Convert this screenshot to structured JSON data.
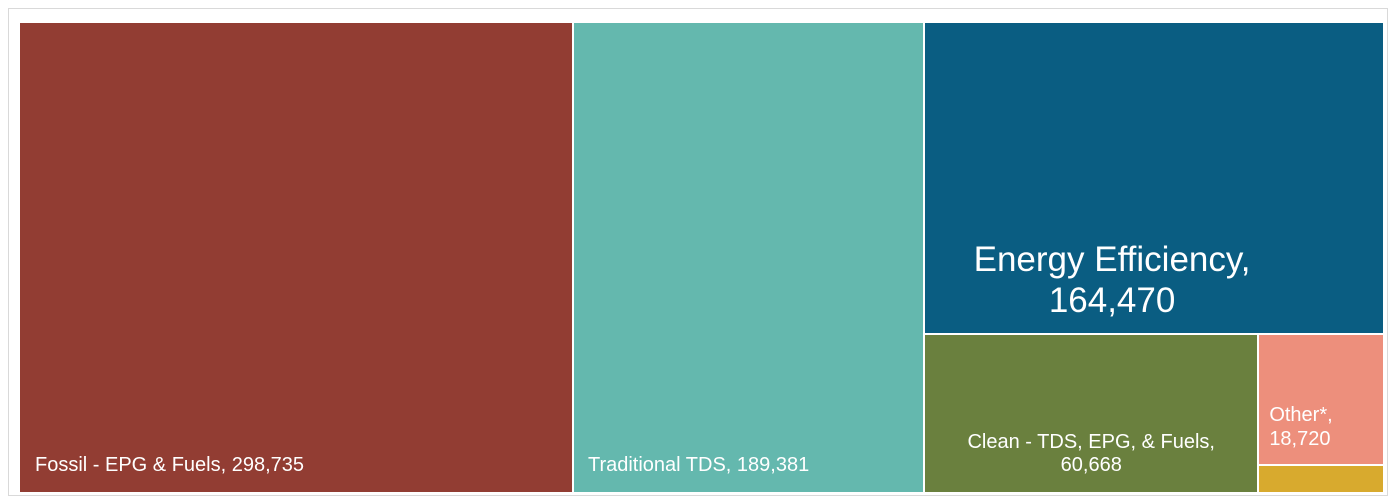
{
  "chart_data": {
    "type": "treemap",
    "title": "",
    "items": [
      {
        "label": "Fossil - EPG & Fuels, 298,735",
        "line1": "Fossil - EPG & Fuels, 298,735",
        "line2": "",
        "name": "Fossil - EPG & Fuels",
        "value": 298735,
        "color": "#923d33"
      },
      {
        "label": "Traditional TDS, 189,381",
        "line1": "Traditional TDS, 189,381",
        "line2": "",
        "name": "Traditional TDS",
        "value": 189381,
        "color": "#64b8ae"
      },
      {
        "label": "Energy Efficiency, 164,470",
        "line1": "Energy Efficiency,",
        "line2": "164,470",
        "name": "Energy Efficiency",
        "value": 164470,
        "color": "#0a5d82"
      },
      {
        "label": "Clean - TDS, EPG, & Fuels, 60,668",
        "line1": "Clean - TDS, EPG, & Fuels,",
        "line2": "60,668",
        "name": "Clean - TDS, EPG, & Fuels",
        "value": 60668,
        "color": "#6a803e"
      },
      {
        "label": "Other*, 18,720",
        "line1": "Other*,",
        "line2": "18,720",
        "name": "Other*",
        "value": 18720,
        "color": "#ed8f7c"
      },
      {
        "name": "",
        "label": "",
        "value": 4100,
        "color": "#d8aa2e"
      }
    ]
  }
}
